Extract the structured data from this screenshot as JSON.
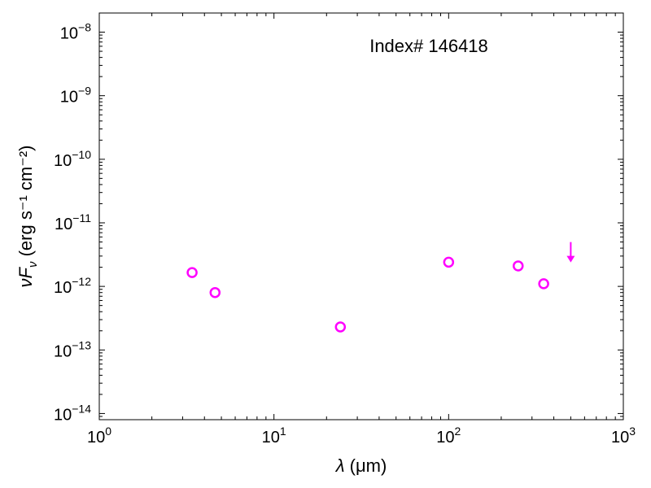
{
  "chart_data": {
    "type": "scatter",
    "title": "",
    "annotation": "Index# 146418",
    "xlabel": {
      "symbol": "λ",
      "unit": " (μm)"
    },
    "ylabel": {
      "symbol": "νF",
      "subscript": "ν",
      "unit": " (erg s⁻¹ cm⁻²)"
    },
    "xscale": "log",
    "yscale": "log",
    "xlim": [
      1,
      1000
    ],
    "ylim": [
      8e-15,
      2e-08
    ],
    "grid": false,
    "color": "#ff00ff",
    "x_ticks": [
      {
        "base": "10",
        "exp": "0"
      },
      {
        "base": "10",
        "exp": "1"
      },
      {
        "base": "10",
        "exp": "2"
      },
      {
        "base": "10",
        "exp": "3"
      }
    ],
    "y_ticks": [
      {
        "base": "10",
        "exp": "−14"
      },
      {
        "base": "10",
        "exp": "−13"
      },
      {
        "base": "10",
        "exp": "−12"
      },
      {
        "base": "10",
        "exp": "−11"
      },
      {
        "base": "10",
        "exp": "−10"
      },
      {
        "base": "10",
        "exp": "−9"
      },
      {
        "base": "10",
        "exp": "−8"
      }
    ],
    "points": [
      {
        "x": 3.4,
        "y": 1.65e-12
      },
      {
        "x": 4.6,
        "y": 8e-13
      },
      {
        "x": 24,
        "y": 2.3e-13
      },
      {
        "x": 100,
        "y": 2.4e-12
      },
      {
        "x": 250,
        "y": 2.1e-12
      },
      {
        "x": 350,
        "y": 1.1e-12
      }
    ],
    "upper_limits": [
      {
        "x": 500,
        "y": 3.3e-12
      }
    ]
  }
}
